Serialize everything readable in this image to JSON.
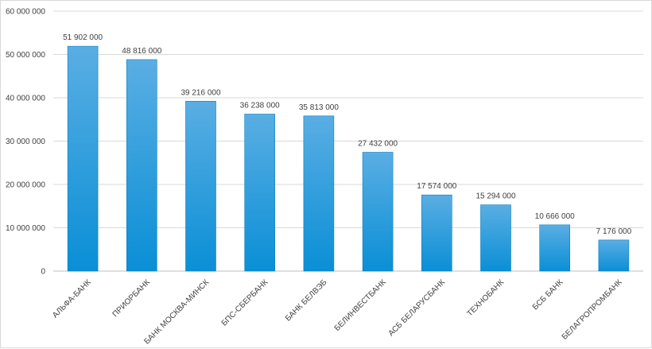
{
  "chart_data": {
    "type": "bar",
    "title": "",
    "xlabel": "",
    "ylabel": "",
    "ylim": [
      0,
      60000000
    ],
    "yticks": [
      0,
      10000000,
      20000000,
      30000000,
      40000000,
      50000000,
      60000000
    ],
    "ytick_labels": [
      "0",
      "10 000 000",
      "20 000 000",
      "30 000 000",
      "40 000 000",
      "50 000 000",
      "60 000 000"
    ],
    "grid": true,
    "legend": "none",
    "categories": [
      "АЛЬФА-БАНК",
      "ПРИОРБАНК",
      "БАНК МОСКВА-МИНСК",
      "БПС-СБЕРБАНК",
      "БАНК БЕЛВЭБ",
      "БЕЛИНВЕСТБАНК",
      "АСБ БЕЛАРУСБАНК",
      "ТЕХНОБАНК",
      "БСБ БАНК",
      "БЕЛАГРОПРОМБАНК"
    ],
    "values": [
      51902000,
      48816000,
      39216000,
      36238000,
      35813000,
      27432000,
      17574000,
      15294000,
      10666000,
      7176000
    ],
    "data_labels": [
      "51 902 000",
      "48 816 000",
      "39 216 000",
      "36 238 000",
      "35 813 000",
      "27 432 000",
      "17 574 000",
      "15 294 000",
      "10 666 000",
      "7 176 000"
    ],
    "colors": {
      "bar_top": "#5aaee3",
      "bar_bottom": "#0a8fd6",
      "bar_stroke": "#0b7fc0",
      "gridline": "#d9d9d9",
      "text": "#404040"
    }
  }
}
